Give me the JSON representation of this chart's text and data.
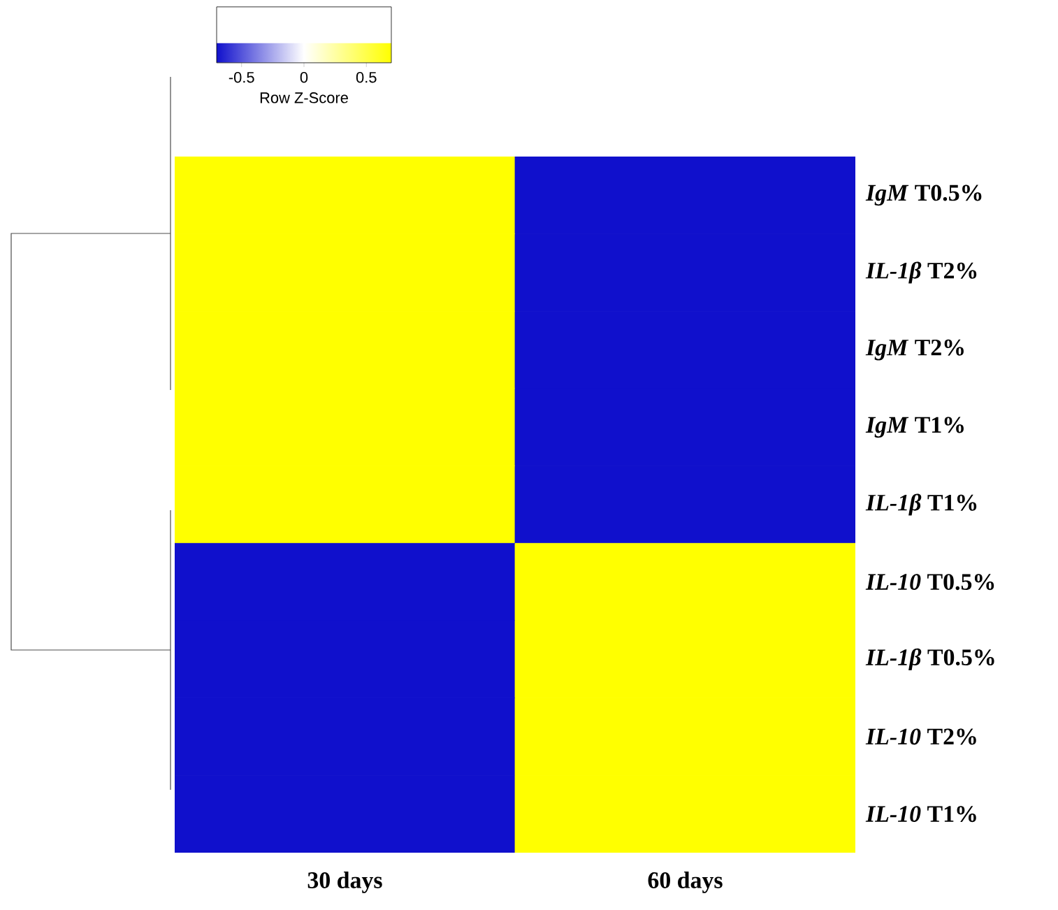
{
  "chart_data": {
    "type": "heatmap",
    "categories": [
      "30 days",
      "60 days"
    ],
    "y_categories": [
      "*IgM* T0.5%",
      "*IL-1β* T2%",
      "*IgM* T2%",
      "*IgM* T1%",
      "*IL-1β* T1%",
      "*IL-10* T0.5%",
      "*IL-1β* T0.5%",
      "*IL-10* T2%",
      "*IL-10* T1%"
    ],
    "cells": [
      [
        0.7,
        -0.7
      ],
      [
        0.7,
        -0.7
      ],
      [
        0.7,
        -0.7
      ],
      [
        0.7,
        -0.7
      ],
      [
        0.7,
        -0.7
      ],
      [
        -0.7,
        0.7
      ],
      [
        -0.7,
        0.7
      ],
      [
        -0.7,
        0.7
      ],
      [
        -0.7,
        0.7
      ]
    ],
    "clim": [
      -0.7,
      0.7
    ],
    "cticks": [
      -0.5,
      0,
      0.5
    ],
    "clabel": "Row Z-Score"
  }
}
